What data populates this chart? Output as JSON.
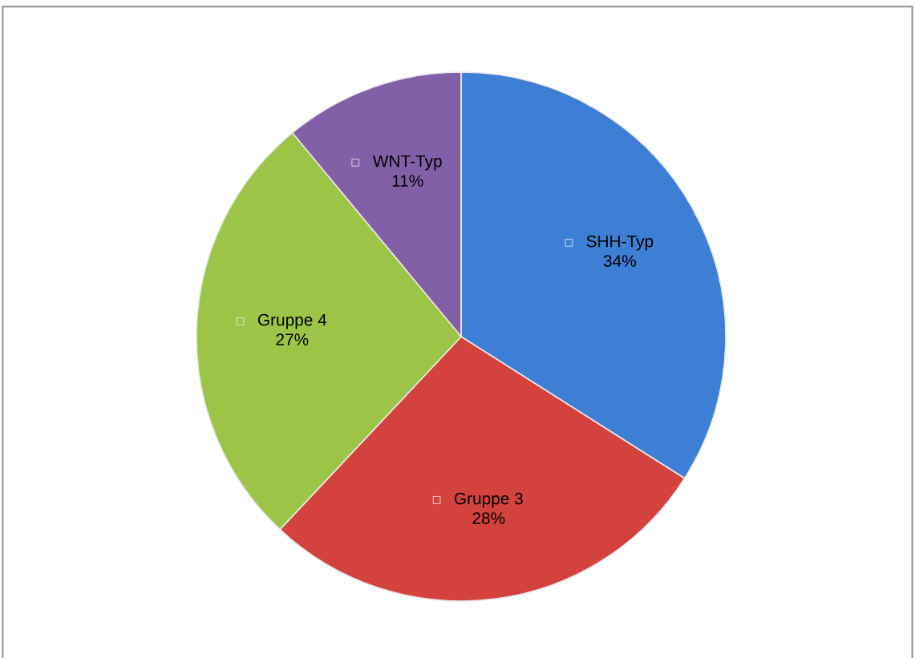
{
  "chart_data": {
    "type": "pie",
    "categories": [
      "SHH-Typ",
      "Gruppe 3",
      "Gruppe 4",
      "WNT-Typ"
    ],
    "values": [
      34,
      28,
      27,
      11
    ],
    "value_labels": [
      "34%",
      "28%",
      "27%",
      "11%"
    ],
    "colors": [
      "#3d7fd4",
      "#d4423e",
      "#9cc447",
      "#8260a8"
    ],
    "legend": "center"
  }
}
